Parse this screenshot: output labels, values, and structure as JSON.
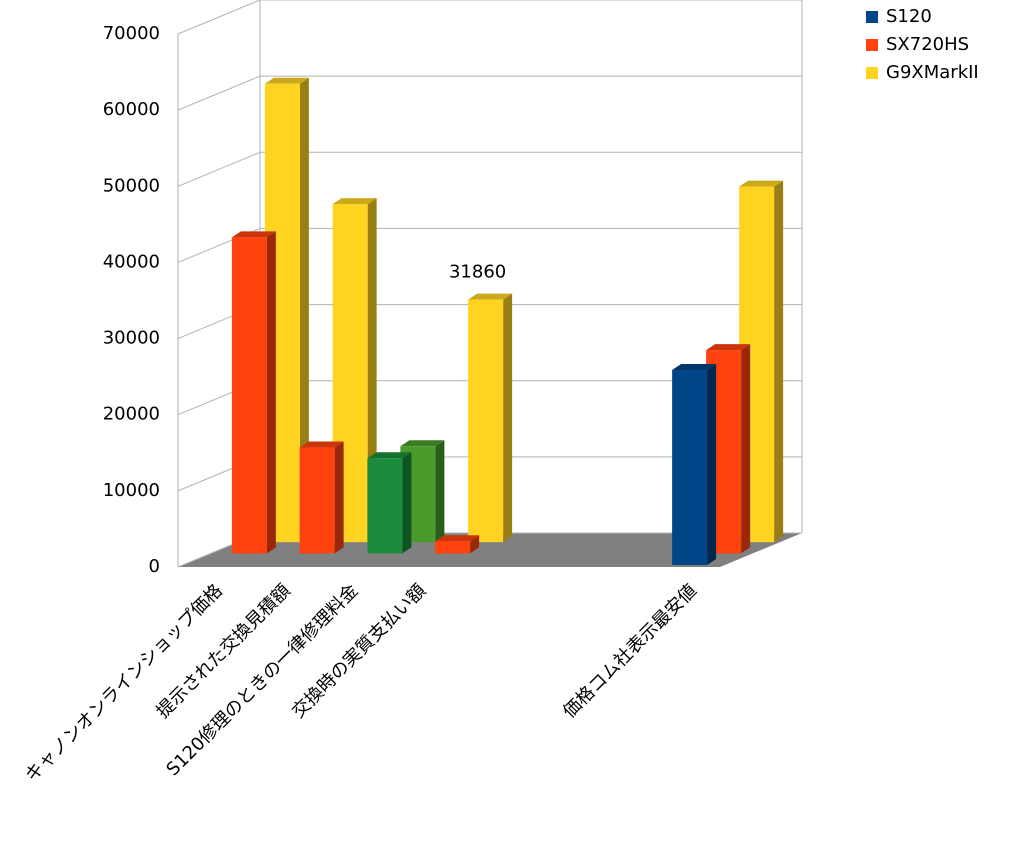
{
  "chart_data": {
    "type": "bar3d",
    "categories": [
      "キャノンオンラインショップ価格",
      "提示された交換見積額",
      "S120修理のときの一律修理料金",
      "交換時の実質支払い額",
      null,
      null,
      null,
      "価格コム社表示最安値"
    ],
    "series": [
      {
        "name": "S120",
        "color": "#004586",
        "values": [
          null,
          null,
          null,
          null,
          null,
          null,
          null,
          25600
        ]
      },
      {
        "name": "SX720HS",
        "color": "#ff420e",
        "values": [
          41500,
          13900,
          12500,
          1600,
          null,
          null,
          null,
          26700
        ],
        "point_colors": [
          null,
          null,
          "#1b8c3c",
          null,
          null,
          null,
          null,
          null
        ]
      },
      {
        "name": "G9XMarkII",
        "color": "#ffd320",
        "values": [
          60200,
          44400,
          12600,
          31860,
          null,
          null,
          null,
          46700
        ],
        "point_colors": [
          null,
          null,
          "#4a9b2b",
          null,
          null,
          null,
          null,
          null
        ],
        "value_labels": [
          null,
          null,
          null,
          "31860",
          null,
          null,
          null,
          null
        ]
      }
    ],
    "ylim": [
      0,
      70000
    ],
    "yticks": [
      0,
      10000,
      20000,
      30000,
      40000,
      50000,
      60000,
      70000
    ],
    "grid": true,
    "legend": "top-right"
  }
}
